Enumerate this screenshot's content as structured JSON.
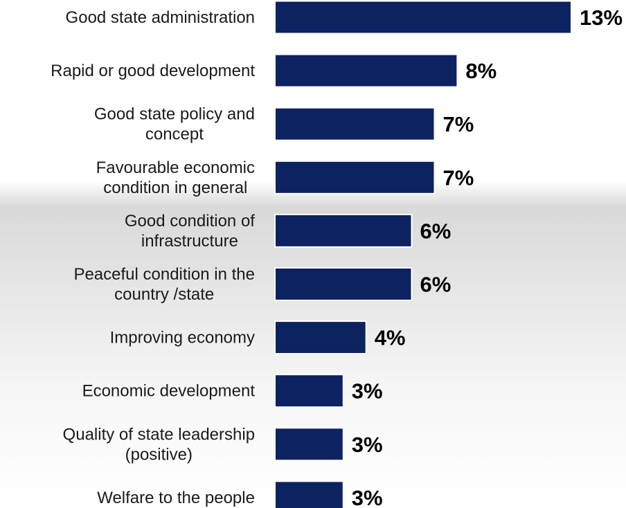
{
  "chart_data": {
    "type": "bar",
    "orientation": "horizontal",
    "categories": [
      "Good state administration",
      "Rapid or good development",
      "Good state policy and concept",
      "Favourable economic condition in general",
      "Good condition of infrastructure",
      "Peaceful condition in the country /state",
      "Improving economy",
      "Economic development",
      "Quality of state leadership (positive)",
      "Welfare to the people"
    ],
    "category_lines": [
      [
        "Good state administration"
      ],
      [
        "Rapid or good development"
      ],
      [
        "Good state policy and",
        "concept"
      ],
      [
        "Favourable economic",
        "condition in general"
      ],
      [
        "Good condition of",
        "infrastructure"
      ],
      [
        "Peaceful condition in the",
        "country /state"
      ],
      [
        "Improving economy"
      ],
      [
        "Economic development"
      ],
      [
        "Quality of state leadership",
        "(positive)"
      ],
      [
        "Welfare to the people"
      ]
    ],
    "values": [
      13,
      8,
      7,
      7,
      6,
      6,
      4,
      3,
      3,
      3
    ],
    "value_labels": [
      "13%",
      "8%",
      "7%",
      "7%",
      "6%",
      "6%",
      "4%",
      "3%",
      "3%",
      "3%"
    ],
    "unit": "%",
    "xlim": [
      0,
      13
    ],
    "grid": false,
    "legend": "none",
    "colors": {
      "bar": "#0d2260",
      "bar_border": "#ffffff",
      "label_text": "#1a1a1a",
      "value_text": "#000000"
    }
  }
}
